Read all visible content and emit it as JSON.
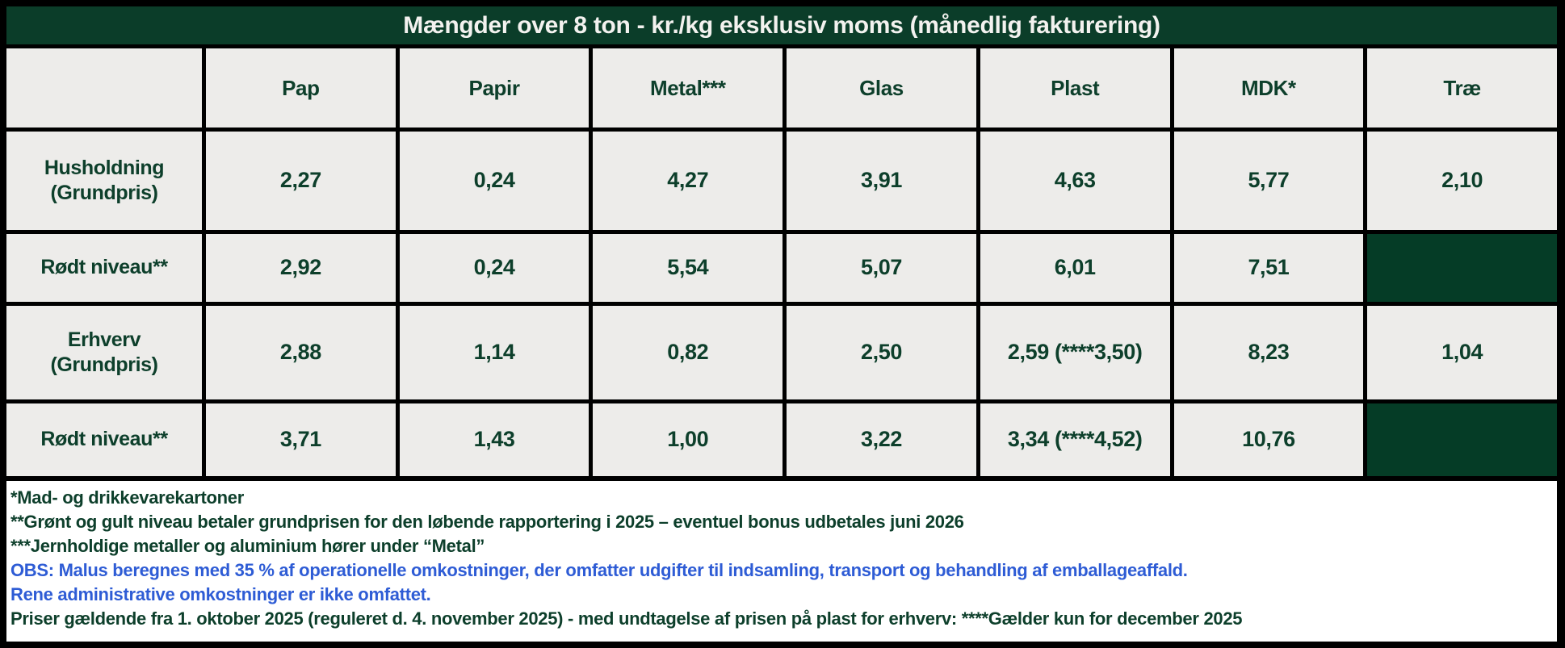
{
  "title": "Mængder over 8 ton - kr./kg eksklusiv moms (månedlig fakturering)",
  "colors": {
    "header_green": "#0b3d29",
    "filled_cell_green": "#053c26",
    "cell_background": "#edecea",
    "text_green": "#0d3f2b",
    "note_blue": "#2e5cd5",
    "border_black": "#000000",
    "title_text": "#f3f2ef"
  },
  "table": {
    "columns": [
      "",
      "Pap",
      "Papir",
      "Metal***",
      "Glas",
      "Plast",
      "MDK*",
      "Træ"
    ],
    "rows": [
      {
        "label": "Husholdning (Grundpris)",
        "cells": [
          "2,27",
          "0,24",
          "4,27",
          "3,91",
          "4,63",
          "5,77",
          "2,10"
        ]
      },
      {
        "label": "Rødt niveau**",
        "cells": [
          "2,92",
          "0,24",
          "5,54",
          "5,07",
          "6,01",
          "7,51",
          null
        ]
      },
      {
        "label": "Erhverv (Grundpris)",
        "cells": [
          "2,88",
          "1,14",
          "0,82",
          "2,50",
          "2,59 (****3,50)",
          "8,23",
          "1,04"
        ]
      },
      {
        "label": "Rødt niveau**",
        "cells": [
          "3,71",
          "1,43",
          "1,00",
          "3,22",
          "3,34 (****4,52)",
          "10,76",
          null
        ]
      }
    ]
  },
  "footnotes": {
    "note1": "*Mad- og drikkevarekartoner",
    "note2": "**Grønt og gult niveau betaler grundprisen for den løbende rapportering i 2025 – eventuel bonus udbetales juni 2026",
    "note3": "***Jernholdige metaller og aluminium hører under “Metal”",
    "obs_line1": "OBS: Malus beregnes med 35 % af operationelle omkostninger, der omfatter udgifter til indsamling, transport og behandling af emballageaffald.",
    "obs_line2": "Rene administrative omkostninger er ikke omfattet.",
    "validity": "Priser gældende fra 1. oktober 2025 (reguleret d. 4. november 2025) - med undtagelse af prisen på plast for erhverv: ****Gælder kun for december 2025"
  }
}
